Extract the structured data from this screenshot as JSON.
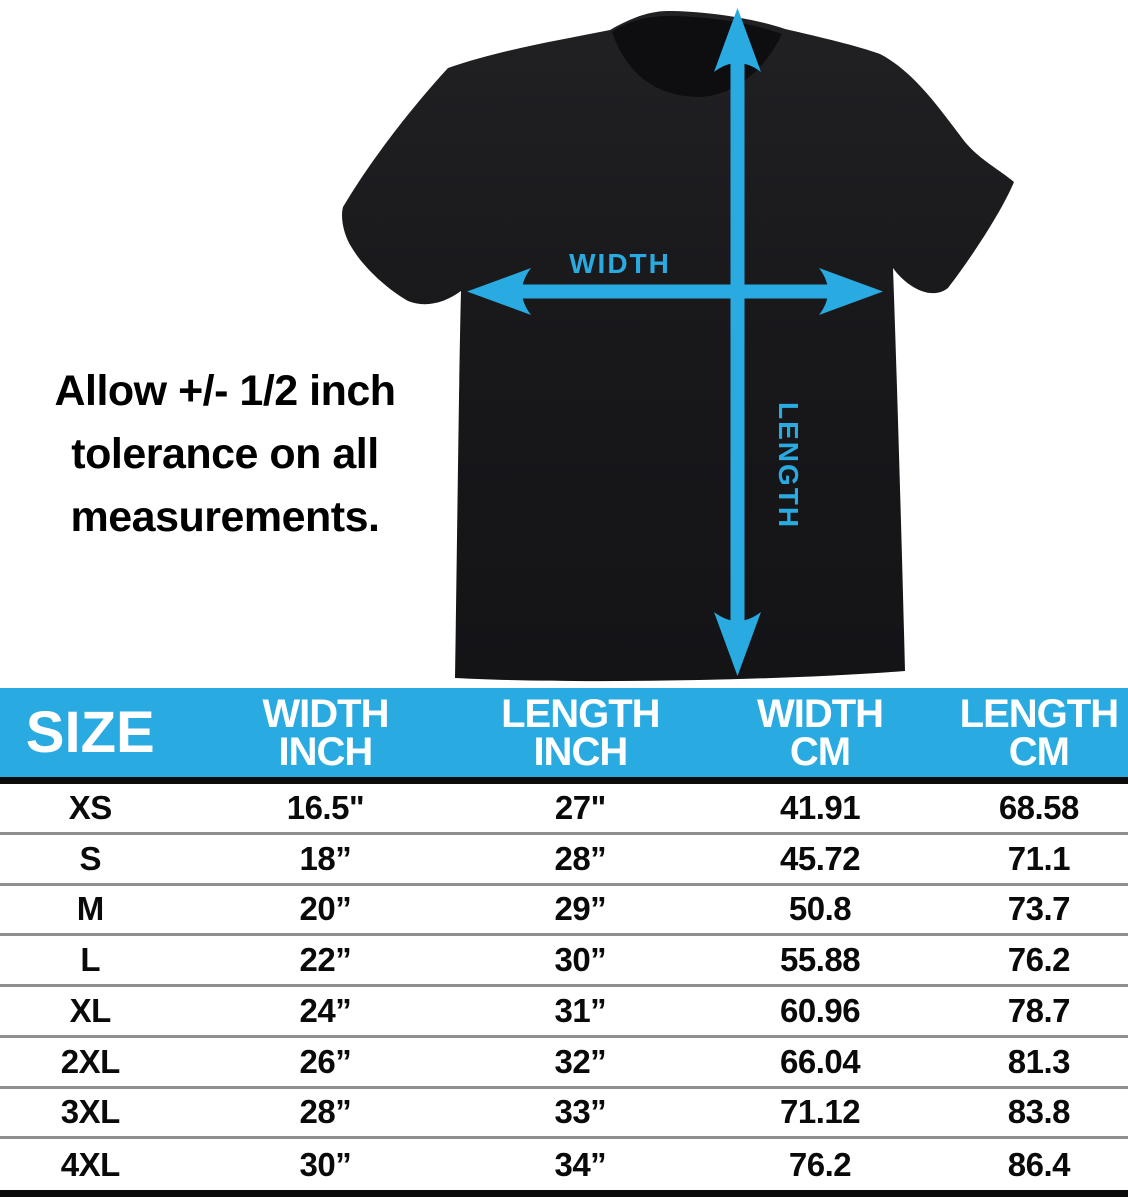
{
  "colors": {
    "accent_blue": "#29ABE2",
    "shirt_black": "#1a1a1d",
    "row_separator": "#8f8f8f",
    "divider_black": "#0b0b0b",
    "header_text": "#ffffff",
    "body_text": "#000000"
  },
  "diagram": {
    "width_arrow_label": "WIDTH",
    "length_arrow_label": "LENGTH"
  },
  "note": {
    "lines": [
      "Allow +/- 1/2 inch",
      "tolerance on all",
      "measurements."
    ]
  },
  "size_chart": {
    "columns": [
      {
        "line1": "SIZE",
        "line2": ""
      },
      {
        "line1": "WIDTH",
        "line2": "INCH"
      },
      {
        "line1": "LENGTH",
        "line2": "INCH"
      },
      {
        "line1": "WIDTH",
        "line2": "CM"
      },
      {
        "line1": "LENGTH",
        "line2": "CM"
      }
    ],
    "rows": [
      {
        "size": "XS",
        "width_inch": "16.5\"",
        "length_inch": "27\"",
        "width_cm": "41.91",
        "length_cm": "68.58"
      },
      {
        "size": "S",
        "width_inch": "18”",
        "length_inch": "28”",
        "width_cm": "45.72",
        "length_cm": "71.1"
      },
      {
        "size": "M",
        "width_inch": "20”",
        "length_inch": "29”",
        "width_cm": "50.8",
        "length_cm": "73.7"
      },
      {
        "size": "L",
        "width_inch": "22”",
        "length_inch": "30”",
        "width_cm": "55.88",
        "length_cm": "76.2"
      },
      {
        "size": "XL",
        "width_inch": "24”",
        "length_inch": "31”",
        "width_cm": "60.96",
        "length_cm": "78.7"
      },
      {
        "size": "2XL",
        "width_inch": "26”",
        "length_inch": "32”",
        "width_cm": "66.04",
        "length_cm": "81.3"
      },
      {
        "size": "3XL",
        "width_inch": "28”",
        "length_inch": "33”",
        "width_cm": "71.12",
        "length_cm": "83.8"
      },
      {
        "size": "4XL",
        "width_inch": "30”",
        "length_inch": "34”",
        "width_cm": "76.2",
        "length_cm": "86.4"
      }
    ]
  },
  "chart_data": {
    "type": "table",
    "title": "T-shirt size chart with +/- 1/2 inch tolerance",
    "columns": [
      "SIZE",
      "WIDTH INCH",
      "LENGTH INCH",
      "WIDTH CM",
      "LENGTH CM"
    ],
    "rows": [
      [
        "XS",
        "16.5\"",
        "27\"",
        "41.91",
        "68.58"
      ],
      [
        "S",
        "18”",
        "28”",
        "45.72",
        "71.1"
      ],
      [
        "M",
        "20”",
        "29”",
        "50.8",
        "73.7"
      ],
      [
        "L",
        "22”",
        "30”",
        "55.88",
        "76.2"
      ],
      [
        "XL",
        "24”",
        "31”",
        "60.96",
        "78.7"
      ],
      [
        "2XL",
        "26”",
        "32”",
        "66.04",
        "81.3"
      ],
      [
        "3XL",
        "28”",
        "33”",
        "71.12",
        "83.8"
      ],
      [
        "4XL",
        "30”",
        "34”",
        "76.2",
        "86.4"
      ]
    ]
  }
}
